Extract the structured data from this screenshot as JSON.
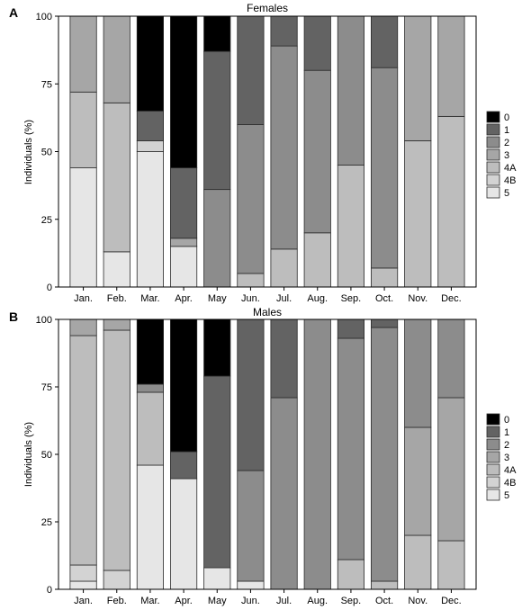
{
  "colors": {
    "0": "#000000",
    "1": "#636363",
    "2": "#8c8c8c",
    "3": "#a6a6a6",
    "4A": "#bdbdbd",
    "4B": "#d3d3d3",
    "5": "#e6e6e6"
  },
  "chart_data": [
    {
      "type": "bar",
      "stacked": true,
      "panel_letter": "A",
      "title": "Females",
      "xlabel": "",
      "ylabel": "Individuals (%)",
      "ylim": [
        0,
        100
      ],
      "yticks": [
        0,
        25,
        50,
        75,
        100
      ],
      "legend_position": "right",
      "categories": [
        "Jan.",
        "Feb.",
        "Mar.",
        "Apr.",
        "May",
        "Jun.",
        "Jul.",
        "Aug.",
        "Sep.",
        "Oct.",
        "Nov.",
        "Dec."
      ],
      "series": [
        {
          "name": "5",
          "values": [
            44,
            13,
            50,
            15,
            0,
            0,
            0,
            0,
            0,
            0,
            0,
            0
          ]
        },
        {
          "name": "4B",
          "values": [
            0,
            0,
            4,
            0,
            0,
            0,
            0,
            0,
            0,
            0,
            0,
            0
          ]
        },
        {
          "name": "4A",
          "values": [
            28,
            55,
            0,
            0,
            0,
            5,
            14,
            20,
            45,
            7,
            54,
            63
          ]
        },
        {
          "name": "3",
          "values": [
            28,
            32,
            0,
            3,
            0,
            0,
            0,
            0,
            0,
            0,
            46,
            37
          ]
        },
        {
          "name": "2",
          "values": [
            0,
            0,
            0,
            0,
            36,
            55,
            75,
            60,
            55,
            74,
            0,
            0
          ]
        },
        {
          "name": "1",
          "values": [
            0,
            0,
            11,
            26,
            51,
            40,
            11,
            20,
            0,
            19,
            0,
            0
          ]
        },
        {
          "name": "0",
          "values": [
            0,
            0,
            35,
            56,
            13,
            0,
            0,
            0,
            0,
            0,
            0,
            0
          ]
        }
      ]
    },
    {
      "type": "bar",
      "stacked": true,
      "panel_letter": "B",
      "title": "Males",
      "xlabel": "",
      "ylabel": "Individuals (%)",
      "ylim": [
        0,
        100
      ],
      "yticks": [
        0,
        25,
        50,
        75,
        100
      ],
      "legend_position": "right",
      "categories": [
        "Jan.",
        "Feb.",
        "Mar.",
        "Apr.",
        "May",
        "Jun.",
        "Jul.",
        "Aug.",
        "Sep.",
        "Oct.",
        "Nov.",
        "Dec."
      ],
      "series": [
        {
          "name": "5",
          "values": [
            3,
            0,
            46,
            41,
            8,
            3,
            0,
            0,
            0,
            0,
            0,
            0
          ]
        },
        {
          "name": "4B",
          "values": [
            6,
            7,
            0,
            0,
            0,
            0,
            0,
            0,
            0,
            0,
            0,
            0
          ]
        },
        {
          "name": "4A",
          "values": [
            85,
            89,
            27,
            0,
            0,
            0,
            0,
            0,
            11,
            3,
            20,
            18
          ]
        },
        {
          "name": "3",
          "values": [
            6,
            4,
            0,
            0,
            0,
            0,
            0,
            0,
            0,
            0,
            40,
            53
          ]
        },
        {
          "name": "2",
          "values": [
            0,
            0,
            3,
            0,
            0,
            41,
            71,
            100,
            82,
            94,
            40,
            29
          ]
        },
        {
          "name": "1",
          "values": [
            0,
            0,
            0,
            10,
            71,
            56,
            29,
            0,
            7,
            3,
            0,
            0
          ]
        },
        {
          "name": "0",
          "values": [
            0,
            0,
            24,
            49,
            21,
            0,
            0,
            0,
            0,
            0,
            0,
            0
          ]
        }
      ]
    }
  ]
}
